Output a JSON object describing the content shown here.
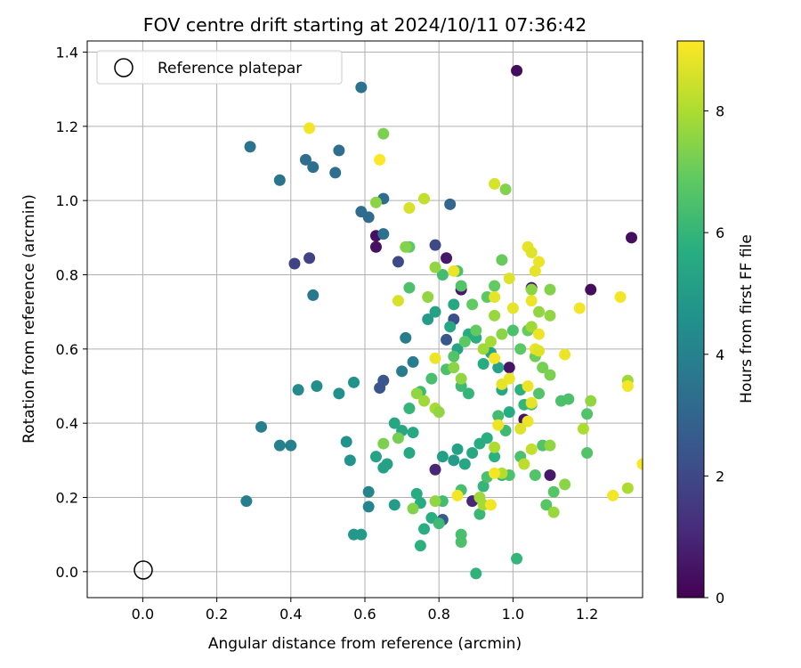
{
  "chart_data": {
    "type": "scatter",
    "title": "FOV centre drift starting at 2024/10/11 07:36:42",
    "xlabel": "Angular distance from reference (arcmin)",
    "ylabel": "Rotation from reference (arcmin)",
    "xlim": [
      -0.15,
      1.35
    ],
    "ylim": [
      -0.07,
      1.43
    ],
    "xticks": [
      "0.0",
      "0.2",
      "0.4",
      "0.6",
      "0.8",
      "1.0",
      "1.2"
    ],
    "yticks": [
      "0.0",
      "0.2",
      "0.4",
      "0.6",
      "0.8",
      "1.0",
      "1.2",
      "1.4"
    ],
    "grid": true,
    "legend": {
      "label": "Reference platepar",
      "placement": "top-left"
    },
    "reference_point": {
      "x": 0.0,
      "y": 0.0
    },
    "colorbar": {
      "label": "Hours from first FF file",
      "range": [
        0,
        9.15
      ],
      "ticks": [
        "0",
        "2",
        "4",
        "6",
        "8"
      ],
      "colormap": "viridis"
    },
    "points": [
      [
        1.01,
        1.35,
        0.3
      ],
      [
        1.32,
        0.9,
        0.3
      ],
      [
        1.21,
        0.76,
        0.3
      ],
      [
        0.63,
        0.905,
        0.4
      ],
      [
        0.63,
        0.875,
        0.4
      ],
      [
        0.82,
        0.845,
        0.6
      ],
      [
        0.86,
        0.76,
        0.6
      ],
      [
        0.99,
        0.55,
        0.5
      ],
      [
        1.03,
        0.41,
        0.5
      ],
      [
        1.1,
        0.26,
        0.6
      ],
      [
        1.05,
        0.765,
        0.8
      ],
      [
        0.79,
        0.275,
        1.0
      ],
      [
        0.89,
        0.19,
        1.0
      ],
      [
        0.45,
        0.845,
        1.8
      ],
      [
        0.41,
        0.83,
        1.8
      ],
      [
        0.69,
        0.835,
        2.0
      ],
      [
        0.79,
        0.88,
        2.0
      ],
      [
        0.84,
        0.68,
        2.2
      ],
      [
        0.82,
        0.625,
        2.5
      ],
      [
        0.65,
        0.515,
        2.4
      ],
      [
        0.64,
        0.495,
        2.4
      ],
      [
        0.81,
        0.14,
        2.6
      ],
      [
        0.83,
        0.99,
        3.0
      ],
      [
        0.61,
        0.955,
        3.2
      ],
      [
        0.59,
        0.97,
        3.2
      ],
      [
        0.65,
        0.91,
        3.4
      ],
      [
        0.65,
        1.005,
        3.2
      ],
      [
        0.44,
        1.11,
        3.3
      ],
      [
        0.46,
        1.09,
        3.3
      ],
      [
        0.53,
        1.135,
        3.3
      ],
      [
        0.52,
        1.075,
        3.3
      ],
      [
        0.59,
        1.305,
        3.4
      ],
      [
        0.37,
        1.055,
        3.5
      ],
      [
        0.29,
        1.145,
        3.5
      ],
      [
        0.46,
        0.745,
        3.7
      ],
      [
        0.71,
        0.63,
        3.8
      ],
      [
        0.73,
        0.565,
        3.8
      ],
      [
        0.7,
        0.54,
        3.8
      ],
      [
        0.28,
        0.19,
        3.9
      ],
      [
        0.32,
        0.39,
        3.9
      ],
      [
        0.37,
        0.34,
        4.0
      ],
      [
        0.4,
        0.34,
        4.0
      ],
      [
        0.61,
        0.215,
        4.1
      ],
      [
        0.61,
        0.175,
        4.1
      ],
      [
        0.42,
        0.49,
        4.3
      ],
      [
        0.47,
        0.5,
        4.5
      ],
      [
        0.53,
        0.48,
        4.5
      ],
      [
        0.57,
        0.51,
        4.6
      ],
      [
        0.55,
        0.35,
        4.6
      ],
      [
        0.56,
        0.3,
        4.7
      ],
      [
        0.57,
        0.1,
        4.8
      ],
      [
        0.59,
        0.1,
        4.9
      ],
      [
        0.68,
        0.18,
        5.0
      ],
      [
        0.66,
        0.29,
        5.2
      ],
      [
        0.65,
        0.28,
        5.2
      ],
      [
        0.63,
        0.31,
        5.3
      ],
      [
        0.68,
        0.4,
        5.4
      ],
      [
        0.7,
        0.38,
        5.4
      ],
      [
        0.72,
        0.32,
        5.5
      ],
      [
        0.73,
        0.375,
        5.5
      ],
      [
        0.75,
        0.185,
        5.6
      ],
      [
        0.74,
        0.21,
        5.6
      ],
      [
        0.76,
        0.115,
        5.7
      ],
      [
        0.78,
        0.145,
        5.7
      ],
      [
        0.75,
        0.07,
        5.8
      ],
      [
        0.77,
        0.68,
        5.0
      ],
      [
        0.79,
        0.7,
        5.2
      ],
      [
        0.84,
        0.72,
        5.5
      ],
      [
        0.83,
        0.66,
        5.4
      ],
      [
        0.85,
        0.6,
        5.3
      ],
      [
        0.88,
        0.64,
        5.6
      ],
      [
        0.9,
        0.63,
        5.7
      ],
      [
        0.92,
        0.56,
        5.6
      ],
      [
        0.94,
        0.59,
        5.4
      ],
      [
        0.96,
        0.55,
        5.2
      ],
      [
        0.97,
        0.49,
        5.4
      ],
      [
        0.99,
        0.43,
        5.6
      ],
      [
        1.02,
        0.49,
        5.8
      ],
      [
        1.03,
        0.45,
        6.0
      ],
      [
        0.84,
        0.3,
        5.0
      ],
      [
        0.81,
        0.31,
        5.1
      ],
      [
        0.85,
        0.33,
        5.2
      ],
      [
        0.87,
        0.29,
        5.4
      ],
      [
        0.89,
        0.32,
        5.5
      ],
      [
        0.91,
        0.345,
        5.6
      ],
      [
        0.93,
        0.36,
        5.7
      ],
      [
        0.95,
        0.31,
        5.8
      ],
      [
        0.97,
        0.26,
        5.9
      ],
      [
        0.92,
        0.23,
        6.0
      ],
      [
        0.91,
        0.155,
        6.1
      ],
      [
        0.9,
        -0.005,
        5.9
      ],
      [
        1.01,
        0.035,
        6.0
      ],
      [
        0.86,
        0.08,
        6.5
      ],
      [
        0.86,
        0.1,
        6.4
      ],
      [
        0.8,
        0.13,
        6.2
      ],
      [
        0.81,
        0.19,
        6.3
      ],
      [
        0.86,
        0.22,
        6.4
      ],
      [
        0.93,
        0.255,
        6.5
      ],
      [
        0.99,
        0.26,
        6.5
      ],
      [
        1.02,
        0.31,
        6.5
      ],
      [
        1.06,
        0.26,
        6.6
      ],
      [
        1.08,
        0.34,
        6.6
      ],
      [
        1.09,
        0.18,
        6.7
      ],
      [
        1.11,
        0.215,
        6.7
      ],
      [
        1.13,
        0.46,
        6.5
      ],
      [
        1.15,
        0.465,
        6.5
      ],
      [
        1.2,
        0.425,
        6.6
      ],
      [
        1.2,
        0.32,
        6.6
      ],
      [
        0.72,
        0.44,
        6.0
      ],
      [
        0.75,
        0.485,
        6.2
      ],
      [
        0.78,
        0.52,
        6.4
      ],
      [
        0.82,
        0.545,
        6.5
      ],
      [
        0.84,
        0.58,
        6.6
      ],
      [
        0.87,
        0.62,
        6.8
      ],
      [
        0.9,
        0.65,
        6.9
      ],
      [
        0.72,
        0.875,
        6.8
      ],
      [
        0.72,
        0.765,
        6.5
      ],
      [
        0.81,
        0.8,
        6.3
      ],
      [
        0.85,
        0.81,
        6.5
      ],
      [
        0.86,
        0.77,
        6.6
      ],
      [
        0.89,
        0.72,
        6.9
      ],
      [
        0.93,
        0.74,
        6.8
      ],
      [
        0.95,
        0.77,
        6.9
      ],
      [
        0.97,
        0.84,
        7.0
      ],
      [
        1.0,
        0.65,
        6.5
      ],
      [
        1.02,
        0.6,
        6.8
      ],
      [
        1.04,
        0.65,
        7.0
      ],
      [
        1.06,
        0.58,
        7.1
      ],
      [
        1.08,
        0.55,
        7.2
      ],
      [
        1.1,
        0.53,
        7.3
      ],
      [
        1.05,
        0.45,
        6.5
      ],
      [
        1.07,
        0.48,
        6.6
      ],
      [
        0.98,
        0.38,
        6.2
      ],
      [
        0.96,
        0.42,
        6.3
      ],
      [
        0.88,
        0.48,
        6.0
      ],
      [
        0.86,
        0.5,
        6.2
      ],
      [
        0.65,
        1.18,
        7.3
      ],
      [
        0.98,
        1.03,
        7.4
      ],
      [
        0.63,
        0.995,
        7.5
      ],
      [
        0.71,
        0.875,
        7.4
      ],
      [
        0.79,
        0.82,
        7.6
      ],
      [
        0.77,
        0.74,
        7.6
      ],
      [
        0.95,
        0.69,
        7.7
      ],
      [
        0.97,
        0.64,
        7.5
      ],
      [
        1.05,
        0.76,
        7.5
      ],
      [
        1.07,
        0.7,
        7.6
      ],
      [
        1.1,
        0.69,
        7.6
      ],
      [
        1.1,
        0.76,
        7.4
      ],
      [
        0.74,
        0.48,
        7.6
      ],
      [
        0.76,
        0.46,
        7.8
      ],
      [
        0.79,
        0.44,
        7.9
      ],
      [
        0.8,
        0.43,
        7.6
      ],
      [
        0.84,
        0.55,
        7.5
      ],
      [
        0.86,
        0.52,
        7.6
      ],
      [
        0.92,
        0.6,
        7.8
      ],
      [
        0.94,
        0.62,
        7.9
      ],
      [
        1.05,
        0.66,
        7.8
      ],
      [
        1.1,
        0.34,
        7.6
      ],
      [
        1.11,
        0.16,
        7.7
      ],
      [
        1.14,
        0.235,
        7.5
      ],
      [
        1.19,
        0.385,
        8.0
      ],
      [
        1.21,
        0.46,
        7.6
      ],
      [
        1.31,
        0.515,
        7.8
      ],
      [
        1.31,
        0.225,
        8.0
      ],
      [
        0.65,
        0.345,
        7.3
      ],
      [
        0.69,
        0.36,
        7.2
      ],
      [
        0.73,
        0.17,
        7.4
      ],
      [
        0.79,
        0.19,
        7.6
      ],
      [
        0.91,
        0.2,
        7.8
      ],
      [
        0.92,
        0.18,
        7.9
      ],
      [
        0.95,
        0.335,
        8.0
      ],
      [
        0.97,
        0.265,
        8.1
      ],
      [
        1.03,
        0.29,
        8.2
      ],
      [
        1.05,
        0.33,
        8.3
      ],
      [
        0.72,
        0.98,
        8.6
      ],
      [
        0.76,
        1.005,
        8.3
      ],
      [
        0.95,
        1.045,
        8.6
      ],
      [
        0.69,
        0.73,
        8.6
      ],
      [
        0.84,
        0.81,
        8.9
      ],
      [
        0.95,
        0.74,
        8.8
      ],
      [
        0.99,
        0.79,
        8.7
      ],
      [
        1.0,
        0.71,
        8.8
      ],
      [
        1.04,
        0.875,
        8.8
      ],
      [
        1.05,
        0.86,
        8.7
      ],
      [
        1.07,
        0.835,
        8.9
      ],
      [
        1.06,
        0.81,
        8.8
      ],
      [
        1.05,
        0.73,
        8.9
      ],
      [
        1.07,
        0.64,
        8.9
      ],
      [
        1.06,
        0.6,
        8.8
      ],
      [
        1.07,
        0.595,
        8.7
      ],
      [
        1.04,
        0.5,
        8.9
      ],
      [
        1.05,
        0.455,
        8.8
      ],
      [
        1.04,
        0.405,
        8.9
      ],
      [
        1.02,
        0.385,
        8.7
      ],
      [
        0.99,
        0.52,
        8.9
      ],
      [
        0.97,
        0.505,
        8.8
      ],
      [
        0.95,
        0.575,
        9.0
      ],
      [
        0.96,
        0.395,
        8.9
      ],
      [
        0.95,
        0.265,
        9.0
      ],
      [
        0.94,
        0.18,
        9.0
      ],
      [
        0.85,
        0.205,
        9.0
      ],
      [
        0.79,
        0.575,
        8.9
      ],
      [
        0.45,
        1.195,
        9.0
      ],
      [
        0.64,
        1.11,
        9.1
      ],
      [
        1.18,
        0.71,
        9.0
      ],
      [
        1.29,
        0.74,
        9.0
      ],
      [
        1.31,
        0.5,
        9.0
      ],
      [
        1.14,
        0.585,
        8.9
      ],
      [
        1.27,
        0.205,
        9.0
      ],
      [
        1.35,
        0.29,
        9.1
      ]
    ]
  }
}
